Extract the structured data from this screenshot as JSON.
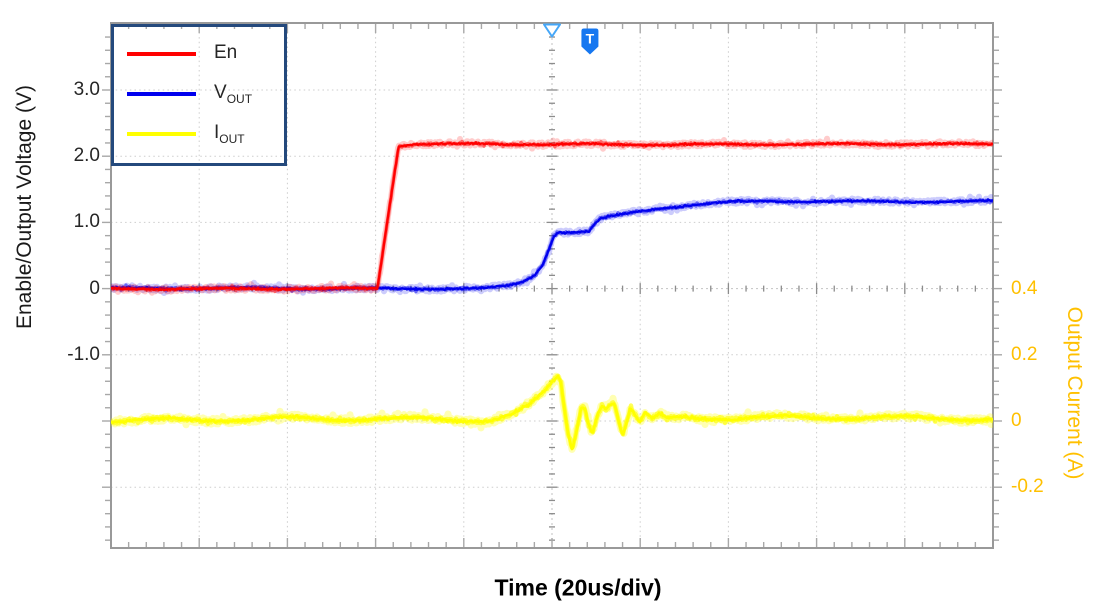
{
  "axes": {
    "left": {
      "title": "Enable/Output Voltage  (V)",
      "ticks": [
        {
          "label": "3.0",
          "v": 3
        },
        {
          "label": "2.0",
          "v": 2
        },
        {
          "label": "1.0",
          "v": 1
        },
        {
          "label": "0",
          "v": 0
        },
        {
          "label": "-1.0",
          "v": -1
        }
      ]
    },
    "right": {
      "title": "Output Current  (A)",
      "color": "#FFC000",
      "ticks": [
        {
          "label": "0.4",
          "a": 0.4
        },
        {
          "label": "0.2",
          "a": 0.2
        },
        {
          "label": "0",
          "a": 0
        },
        {
          "label": "-0.2",
          "a": -0.2
        }
      ]
    },
    "bottom": {
      "title": "Time  (20us/div)"
    }
  },
  "legend": {
    "items": [
      {
        "label": "En",
        "sub": "",
        "color": "#FF0000"
      },
      {
        "label": "V",
        "sub": "OUT",
        "color": "#0000EE"
      },
      {
        "label": "I",
        "sub": "OUT",
        "color": "#FFFF00"
      }
    ]
  },
  "markers": {
    "trigger_triangle": {
      "div": 5.0,
      "color": "#45A7F8"
    },
    "trigger_flag": {
      "div": 5.43,
      "label": "T",
      "color": "#1677F0"
    }
  },
  "chart_data": {
    "type": "line",
    "title": "",
    "xlabel": "Time (20us/div)",
    "x_axis": {
      "divisions": 10,
      "per_div": "20us",
      "trigger_at_div": 5
    },
    "left_axis": {
      "label": "Enable/Output Voltage (V)",
      "unit": "V",
      "range": [
        -3.95,
        4.0
      ],
      "labeled_ticks": [
        3.0,
        2.0,
        1.0,
        0,
        -1.0
      ],
      "volts_per_div": 1
    },
    "right_axis": {
      "label": "Output Current (A)",
      "unit": "A",
      "range": [
        -0.39,
        1.2
      ],
      "labeled_ticks": [
        0.4,
        0.2,
        0,
        -0.2
      ],
      "amps_per_div": 0.2
    },
    "grid": "dotted gridlines every division; oscilloscope center axes with minor ticks",
    "legend_position": "top-left",
    "series": [
      {
        "name": "En",
        "axis": "left",
        "unit": "V",
        "color": "#FF0000",
        "points": [
          [
            0,
            0
          ],
          [
            3.02,
            0
          ],
          [
            3.26,
            2.15
          ],
          [
            3.45,
            2.18
          ],
          [
            10,
            2.18
          ]
        ]
      },
      {
        "name": "VOUT",
        "axis": "left",
        "unit": "V",
        "color": "#0000EE",
        "points": [
          [
            0,
            0
          ],
          [
            4.25,
            0.005
          ],
          [
            4.5,
            0.04
          ],
          [
            4.65,
            0.09
          ],
          [
            4.8,
            0.2
          ],
          [
            4.9,
            0.38
          ],
          [
            4.97,
            0.62
          ],
          [
            5.02,
            0.8
          ],
          [
            5.07,
            0.855
          ],
          [
            5.2,
            0.85
          ],
          [
            5.42,
            0.86
          ],
          [
            5.48,
            0.97
          ],
          [
            5.55,
            1.05
          ],
          [
            5.75,
            1.1
          ],
          [
            6.0,
            1.16
          ],
          [
            6.3,
            1.22
          ],
          [
            6.65,
            1.27
          ],
          [
            7.0,
            1.3
          ],
          [
            7.45,
            1.32
          ],
          [
            10,
            1.32
          ]
        ]
      },
      {
        "name": "IOUT",
        "axis": "right",
        "unit": "A",
        "color": "#FFFF00",
        "points": [
          [
            0,
            0.004
          ],
          [
            4.3,
            0.004
          ],
          [
            4.55,
            0.02
          ],
          [
            4.75,
            0.05
          ],
          [
            4.9,
            0.085
          ],
          [
            5.0,
            0.118
          ],
          [
            5.07,
            0.135
          ],
          [
            5.1,
            0.12
          ],
          [
            5.14,
            0.04
          ],
          [
            5.18,
            -0.03
          ],
          [
            5.23,
            -0.082
          ],
          [
            5.28,
            -0.02
          ],
          [
            5.33,
            0.045
          ],
          [
            5.37,
            0.05
          ],
          [
            5.42,
            -0.005
          ],
          [
            5.46,
            -0.028
          ],
          [
            5.51,
            0.02
          ],
          [
            5.57,
            0.056
          ],
          [
            5.61,
            0.042
          ],
          [
            5.66,
            0.056
          ],
          [
            5.71,
            0.058
          ],
          [
            5.76,
            0.0
          ],
          [
            5.8,
            -0.038
          ],
          [
            5.85,
            0.0
          ],
          [
            5.89,
            0.042
          ],
          [
            5.94,
            0.018
          ],
          [
            5.99,
            -0.005
          ],
          [
            6.06,
            0.022
          ],
          [
            6.13,
            0.004
          ],
          [
            6.22,
            0.018
          ],
          [
            6.32,
            0.006
          ],
          [
            6.5,
            0.012
          ],
          [
            7.0,
            0.008
          ],
          [
            10,
            0.008
          ]
        ]
      }
    ]
  }
}
